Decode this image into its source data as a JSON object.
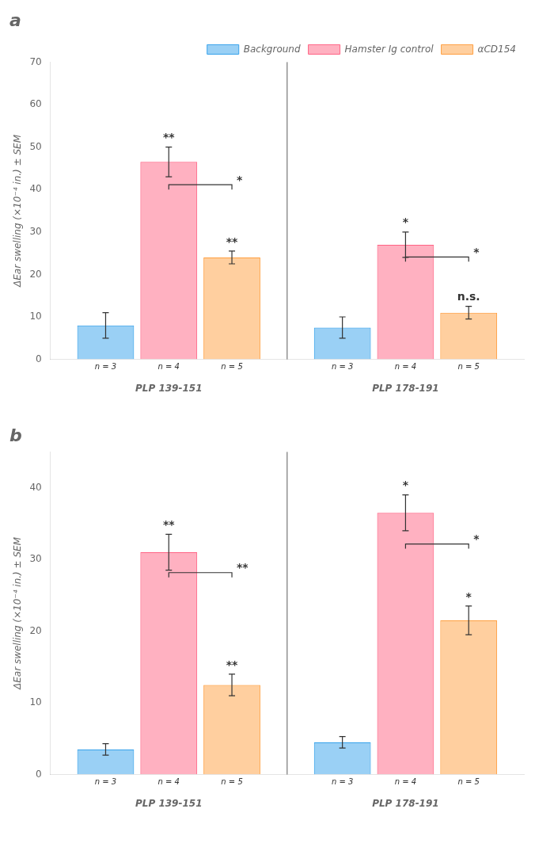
{
  "chart_data": [
    {
      "type": "bar",
      "title": "a",
      "categories": [
        "PLP 139-151",
        "PLP 178-191"
      ],
      "series": [
        {
          "name": "Background",
          "values": [
            8.0,
            7.5
          ],
          "errors": [
            3.0,
            2.5
          ],
          "n_labels": [
            "n = 3",
            "n = 3"
          ]
        },
        {
          "name": "Hamster Ig control",
          "values": [
            46.5,
            27.0
          ],
          "errors": [
            3.5,
            3.0
          ],
          "n_labels": [
            "n = 4",
            "n = 4"
          ],
          "annotations": [
            "**",
            "*"
          ]
        },
        {
          "name": "αCD154",
          "values": [
            24.0,
            11.0
          ],
          "errors": [
            1.5,
            1.5
          ],
          "n_labels": [
            "n = 5",
            "n = 5"
          ],
          "annotations": [
            "**",
            "n.s."
          ]
        }
      ],
      "brackets": [
        {
          "category": "PLP 139-151",
          "from": "Hamster Ig control",
          "to": "αCD154",
          "y": 40.0,
          "text": "*"
        },
        {
          "category": "PLP 178-191",
          "from": "Hamster Ig control",
          "to": "αCD154",
          "y": 23.0,
          "text": "*"
        }
      ],
      "ylabel": "ΔEar swelling (×10⁻⁴ in.) ± SEM",
      "ylim": [
        0,
        70
      ],
      "yticks": [
        0,
        10,
        20,
        30,
        40,
        50,
        60,
        70
      ],
      "grid": false,
      "legend": "upper right"
    },
    {
      "type": "bar",
      "title": "b",
      "categories": [
        "PLP 139-151",
        "PLP 178-191"
      ],
      "series": [
        {
          "name": "Background",
          "values": [
            3.5,
            4.5
          ],
          "errors": [
            0.8,
            0.8
          ],
          "n_labels": [
            "n = 3",
            "n = 3"
          ]
        },
        {
          "name": "Hamster Ig control",
          "values": [
            31.0,
            36.5
          ],
          "errors": [
            2.5,
            2.5
          ],
          "n_labels": [
            "n = 4",
            "n = 4"
          ],
          "annotations": [
            "**",
            "*"
          ]
        },
        {
          "name": "αCD154",
          "values": [
            12.5,
            21.5
          ],
          "errors": [
            1.5,
            2.0
          ],
          "n_labels": [
            "n = 5",
            "n = 5"
          ],
          "annotations": [
            "**",
            "*"
          ]
        }
      ],
      "brackets": [
        {
          "category": "PLP 139-151",
          "from": "Hamster Ig control",
          "to": "αCD154",
          "y": 27.5,
          "text": "**"
        },
        {
          "category": "PLP 178-191",
          "from": "Hamster Ig control",
          "to": "αCD154",
          "y": 31.5,
          "text": "*"
        }
      ],
      "ylabel": "ΔEar swelling (×10⁻⁴ in.) ± SEM",
      "ylim": [
        0,
        45
      ],
      "yticks": [
        0,
        10,
        20,
        30,
        40
      ],
      "grid": false
    }
  ]
}
